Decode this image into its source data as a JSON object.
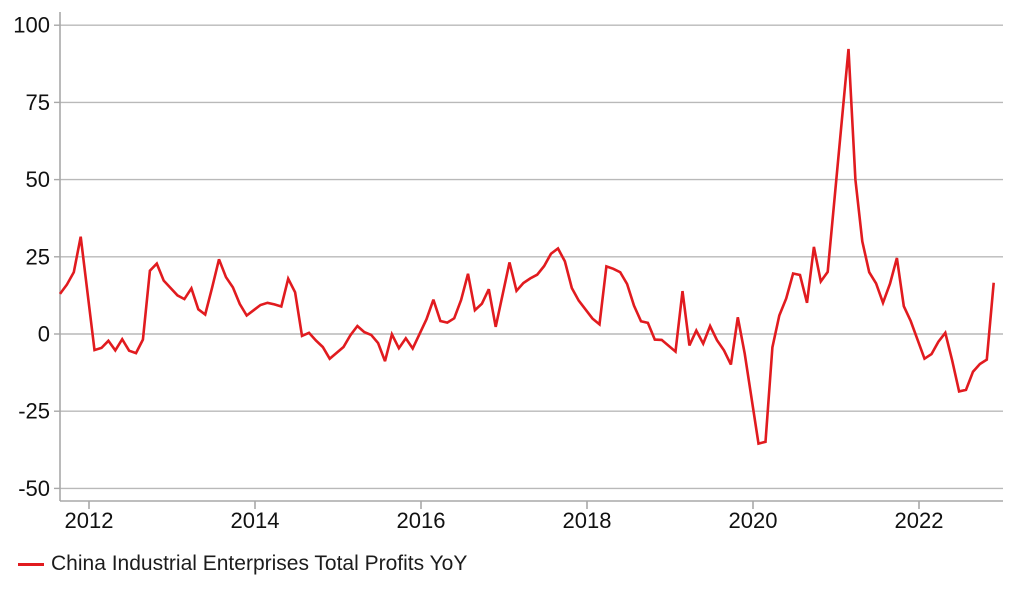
{
  "legend": {
    "label": "China Industrial Enterprises Total Profits YoY"
  },
  "chart_data": {
    "type": "line",
    "title": "",
    "xlabel": "",
    "ylabel": "",
    "grid": "horizontal",
    "legend_position": "bottom-left",
    "line_color": "#e11b1f",
    "grid_color": "#b9b9b9",
    "axis_color": "#a8a8a8",
    "text_color": "#111111",
    "y_ticks": [
      100,
      75,
      50,
      25,
      0,
      -25,
      -50
    ],
    "x_ticks": [
      "2012",
      "2014",
      "2016",
      "2018",
      "2020",
      "2022"
    ],
    "ylim": [
      -54,
      104
    ],
    "series": [
      {
        "name": "China Industrial Enterprises Total Profits YoY",
        "unit": "%",
        "points": [
          [
            2011,
            9,
            13.0
          ],
          [
            2011,
            10,
            16.0
          ],
          [
            2011,
            11,
            20.0
          ],
          [
            2011,
            12,
            31.5
          ],
          [
            2012,
            2,
            -5.2
          ],
          [
            2012,
            3,
            -4.5
          ],
          [
            2012,
            4,
            -2.2
          ],
          [
            2012,
            5,
            -5.3
          ],
          [
            2012,
            6,
            -1.7
          ],
          [
            2012,
            7,
            -5.4
          ],
          [
            2012,
            8,
            -6.2
          ],
          [
            2012,
            9,
            -1.8
          ],
          [
            2012,
            10,
            20.5
          ],
          [
            2012,
            11,
            22.8
          ],
          [
            2012,
            12,
            17.3
          ],
          [
            2013,
            2,
            12.5
          ],
          [
            2013,
            3,
            11.3
          ],
          [
            2013,
            4,
            14.8
          ],
          [
            2013,
            5,
            8.0
          ],
          [
            2013,
            6,
            6.3
          ],
          [
            2013,
            7,
            15.0
          ],
          [
            2013,
            8,
            24.2
          ],
          [
            2013,
            9,
            18.4
          ],
          [
            2013,
            10,
            15.1
          ],
          [
            2013,
            11,
            9.7
          ],
          [
            2013,
            12,
            6.0
          ],
          [
            2014,
            2,
            9.4
          ],
          [
            2014,
            3,
            10.1
          ],
          [
            2014,
            4,
            9.6
          ],
          [
            2014,
            5,
            8.9
          ],
          [
            2014,
            6,
            17.9
          ],
          [
            2014,
            7,
            13.5
          ],
          [
            2014,
            8,
            -0.6
          ],
          [
            2014,
            9,
            0.4
          ],
          [
            2014,
            10,
            -2.1
          ],
          [
            2014,
            11,
            -4.2
          ],
          [
            2014,
            12,
            -8.0
          ],
          [
            2015,
            2,
            -4.2
          ],
          [
            2015,
            3,
            -0.4
          ],
          [
            2015,
            4,
            2.6
          ],
          [
            2015,
            5,
            0.6
          ],
          [
            2015,
            6,
            -0.3
          ],
          [
            2015,
            7,
            -2.9
          ],
          [
            2015,
            8,
            -8.8
          ],
          [
            2015,
            9,
            -0.1
          ],
          [
            2015,
            10,
            -4.6
          ],
          [
            2015,
            11,
            -1.4
          ],
          [
            2015,
            12,
            -4.7
          ],
          [
            2016,
            2,
            4.8
          ],
          [
            2016,
            3,
            11.1
          ],
          [
            2016,
            4,
            4.2
          ],
          [
            2016,
            5,
            3.7
          ],
          [
            2016,
            6,
            5.1
          ],
          [
            2016,
            7,
            11.0
          ],
          [
            2016,
            8,
            19.5
          ],
          [
            2016,
            9,
            7.7
          ],
          [
            2016,
            10,
            9.8
          ],
          [
            2016,
            11,
            14.5
          ],
          [
            2016,
            12,
            2.3
          ],
          [
            2017,
            2,
            23.2
          ],
          [
            2017,
            3,
            14.0
          ],
          [
            2017,
            4,
            16.5
          ],
          [
            2017,
            5,
            18.0
          ],
          [
            2017,
            6,
            19.2
          ],
          [
            2017,
            7,
            22.0
          ],
          [
            2017,
            8,
            26.0
          ],
          [
            2017,
            9,
            27.7
          ],
          [
            2017,
            10,
            23.5
          ],
          [
            2017,
            11,
            14.9
          ],
          [
            2017,
            12,
            10.8
          ],
          [
            2018,
            2,
            5.0
          ],
          [
            2018,
            3,
            3.1
          ],
          [
            2018,
            4,
            21.9
          ],
          [
            2018,
            5,
            21.1
          ],
          [
            2018,
            6,
            20.0
          ],
          [
            2018,
            7,
            16.2
          ],
          [
            2018,
            8,
            9.2
          ],
          [
            2018,
            9,
            4.1
          ],
          [
            2018,
            10,
            3.6
          ],
          [
            2018,
            11,
            -1.8
          ],
          [
            2018,
            12,
            -1.9
          ],
          [
            2019,
            2,
            -5.7
          ],
          [
            2019,
            3,
            13.9
          ],
          [
            2019,
            4,
            -3.7
          ],
          [
            2019,
            5,
            1.1
          ],
          [
            2019,
            6,
            -3.1
          ],
          [
            2019,
            7,
            2.6
          ],
          [
            2019,
            8,
            -2.0
          ],
          [
            2019,
            9,
            -5.3
          ],
          [
            2019,
            10,
            -9.9
          ],
          [
            2019,
            11,
            5.4
          ],
          [
            2019,
            12,
            -6.3
          ],
          [
            2020,
            2,
            -35.5
          ],
          [
            2020,
            3,
            -34.9
          ],
          [
            2020,
            4,
            -4.3
          ],
          [
            2020,
            5,
            6.0
          ],
          [
            2020,
            6,
            11.5
          ],
          [
            2020,
            7,
            19.6
          ],
          [
            2020,
            8,
            19.1
          ],
          [
            2020,
            9,
            10.1
          ],
          [
            2020,
            10,
            28.2
          ],
          [
            2020,
            11,
            17.0
          ],
          [
            2020,
            12,
            20.1
          ],
          [
            2021,
            3,
            92.3
          ],
          [
            2021,
            4,
            50.0
          ],
          [
            2021,
            5,
            30.0
          ],
          [
            2021,
            6,
            20.0
          ],
          [
            2021,
            7,
            16.4
          ],
          [
            2021,
            8,
            10.1
          ],
          [
            2021,
            9,
            16.3
          ],
          [
            2021,
            10,
            24.6
          ],
          [
            2021,
            11,
            9.0
          ],
          [
            2021,
            12,
            4.2
          ],
          [
            2022,
            2,
            -8.0
          ],
          [
            2022,
            3,
            -6.5
          ],
          [
            2022,
            4,
            -2.5
          ],
          [
            2022,
            5,
            0.4
          ],
          [
            2022,
            6,
            -8.6
          ],
          [
            2022,
            7,
            -18.6
          ],
          [
            2022,
            8,
            -18.1
          ],
          [
            2022,
            9,
            -12.2
          ],
          [
            2022,
            10,
            -9.7
          ],
          [
            2022,
            11,
            -8.3
          ],
          [
            2022,
            12,
            16.6
          ]
        ]
      }
    ]
  }
}
